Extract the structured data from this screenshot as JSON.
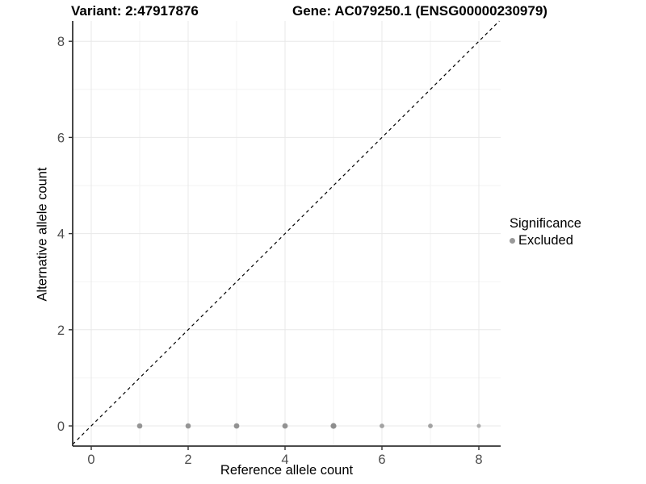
{
  "chart_data": {
    "type": "scatter",
    "title_left": "Variant: 2:47917876",
    "title_right": "Gene: AC079250.1 (ENSG00000230979)",
    "xlabel": "Reference allele count",
    "ylabel": "Alternative allele count",
    "xlim": [
      -0.4,
      8.45
    ],
    "ylim": [
      -0.42,
      8.45
    ],
    "x_ticks": [
      0,
      2,
      4,
      6,
      8
    ],
    "y_ticks": [
      0,
      2,
      4,
      6,
      8
    ],
    "x_minor": [
      1,
      3,
      5,
      7
    ],
    "y_minor": [
      1,
      3,
      5,
      7
    ],
    "grid": true,
    "points": [
      {
        "x": 1,
        "y": 0,
        "r": 3.3,
        "color": "#959595"
      },
      {
        "x": 2,
        "y": 0,
        "r": 3.3,
        "color": "#959595"
      },
      {
        "x": 3,
        "y": 0,
        "r": 3.4,
        "color": "#929292"
      },
      {
        "x": 4,
        "y": 0,
        "r": 3.4,
        "color": "#929292"
      },
      {
        "x": 5,
        "y": 0,
        "r": 3.6,
        "color": "#8e8e8e"
      },
      {
        "x": 6,
        "y": 0,
        "r": 2.9,
        "color": "#a2a2a2"
      },
      {
        "x": 7,
        "y": 0,
        "r": 2.9,
        "color": "#a2a2a2"
      },
      {
        "x": 8,
        "y": 0,
        "r": 2.5,
        "color": "#adadad"
      }
    ],
    "abline": {
      "slope": 1,
      "intercept": 0,
      "style": "dashed",
      "color": "#000000"
    },
    "legend": {
      "title": "Significance",
      "position": "right",
      "items": [
        {
          "label": "Excluded",
          "color": "#999999"
        }
      ]
    },
    "colors": {
      "background": "#ffffff",
      "grid_major": "#e8e8e8",
      "grid_minor": "#f3f3f3",
      "axis_line": "#333333",
      "tick_label": "#4d4d4d",
      "point": "#999999"
    }
  }
}
